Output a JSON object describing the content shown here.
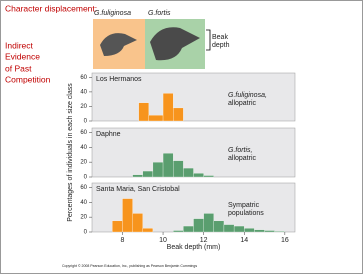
{
  "slide": {
    "heading": "Character displacement:",
    "subheading": [
      "Indirect",
      "Evidence",
      "of Past",
      "Competition"
    ],
    "species": [
      "G.fuliginosa",
      "G.fortis"
    ],
    "beak_label": [
      "Beak",
      "depth"
    ],
    "copyright": "Copyright © 2008 Pearson Education, Inc., publishing as Pearson Benjamin Cummings"
  },
  "chart_data": [
    {
      "type": "histogram",
      "title": "Los Hermanos",
      "annotation": [
        "G.fuliginosa,",
        "allopatric"
      ],
      "series": [
        {
          "color": "#f7941d",
          "bins": [
            8.8,
            9.3,
            10,
            10.5,
            11
          ],
          "values": [
            25,
            8,
            38,
            18
          ]
        }
      ],
      "xlim": [
        6.5,
        16.5
      ],
      "ylim": [
        0,
        66
      ],
      "yticks": [
        0,
        20,
        40,
        60
      ]
    },
    {
      "type": "histogram",
      "title": "Daphne",
      "annotation": [
        "G.fortis,",
        "allopatric"
      ],
      "ylabel": "Percentages of individuals in each size class",
      "series": [
        {
          "color": "#5a9e6f",
          "bins": [
            8.5,
            9,
            9.5,
            10,
            10.5,
            11,
            11.5,
            12,
            12.5
          ],
          "values": [
            3,
            8,
            20,
            32,
            22,
            12,
            5,
            2
          ]
        }
      ],
      "xlim": [
        6.5,
        16.5
      ],
      "ylim": [
        0,
        66
      ],
      "yticks": [
        0,
        20,
        40,
        60
      ]
    },
    {
      "type": "histogram",
      "title": "Santa Maria, San Cristobal",
      "annotation": [
        "Sympatric",
        "populations"
      ],
      "xlabel": "Beak depth (mm)",
      "series": [
        {
          "color": "#f7941d",
          "bins": [
            7.5,
            8,
            8.5,
            9,
            9.5
          ],
          "values": [
            15,
            45,
            25,
            5
          ]
        },
        {
          "color": "#5a9e6f",
          "bins": [
            10.5,
            11,
            11.5,
            12,
            12.5,
            13,
            13.5,
            14,
            14.5,
            15,
            15.5,
            16
          ],
          "values": [
            2,
            8,
            18,
            25,
            15,
            10,
            8,
            5,
            3,
            2,
            1
          ]
        }
      ],
      "xlim": [
        6.5,
        16.5
      ],
      "ylim": [
        0,
        66
      ],
      "yticks": [
        0,
        20,
        40,
        60
      ],
      "xticks": [
        8,
        10,
        12,
        14,
        16
      ]
    }
  ]
}
